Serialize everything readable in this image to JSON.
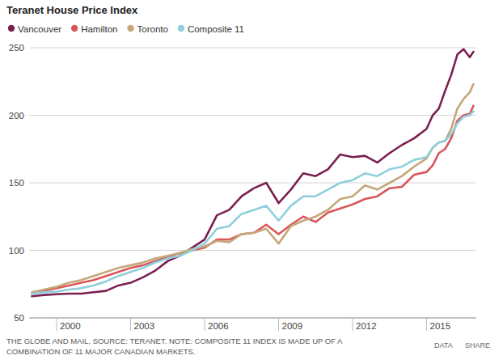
{
  "chart_data": {
    "type": "line",
    "title": "Teranet House Price Index",
    "source": [
      "THE GLOBE AND MAIL, SOURCE: TERANET. NOTE: COMPOSITE 11 INDEX IS MADE UP OF A",
      "COMBINATION OF 11 MAJOR CANADIAN MARKETS."
    ],
    "links": [
      "DATA",
      "SHARE"
    ],
    "x": [
      1999,
      1999.5,
      2000,
      2000.5,
      2001,
      2001.5,
      2002,
      2002.5,
      2003,
      2003.5,
      2004,
      2004.5,
      2005,
      2005.5,
      2006,
      2006.5,
      2007,
      2007.5,
      2008,
      2008.5,
      2009,
      2009.5,
      2010,
      2010.5,
      2011,
      2011.5,
      2012,
      2012.5,
      2013,
      2013.5,
      2014,
      2014.5,
      2015,
      2015.25,
      2015.5,
      2015.75,
      2016,
      2016.25,
      2016.5,
      2016.75,
      2016.9
    ],
    "series": [
      {
        "name": "Vancouver",
        "color": "#7b2151",
        "values": [
          66,
          67,
          67.5,
          68,
          68,
          69,
          70,
          74,
          76,
          80,
          85,
          92,
          96,
          102,
          108,
          126,
          130,
          140,
          146,
          150,
          135,
          145,
          157,
          155,
          160,
          171,
          169,
          170,
          165,
          172,
          178,
          183,
          190,
          200,
          205,
          218,
          230,
          245,
          249,
          243,
          247
        ]
      },
      {
        "name": "Hamilton",
        "color": "#d9565c",
        "values": [
          68,
          70,
          72,
          74,
          76,
          78,
          81,
          84,
          87,
          89,
          92,
          95,
          98,
          100,
          102,
          108,
          108,
          112,
          113,
          119,
          112,
          119,
          125,
          121,
          128,
          131,
          134,
          138,
          140,
          146,
          147,
          156,
          158,
          163,
          172,
          175,
          183,
          196,
          200,
          201,
          207
        ]
      },
      {
        "name": "Toronto",
        "color": "#c5a77a",
        "values": [
          69,
          71,
          73,
          76,
          78,
          81,
          84,
          87,
          89,
          91,
          94,
          96,
          98,
          101,
          103,
          107,
          106,
          112,
          113,
          116,
          105,
          118,
          122,
          125,
          130,
          138,
          140,
          148,
          145,
          150,
          155,
          162,
          168,
          176,
          180,
          181,
          190,
          205,
          212,
          217,
          223
        ]
      },
      {
        "name": "Composite 11",
        "color": "#8ecfdc",
        "values": [
          68,
          69,
          69.5,
          71,
          72,
          74,
          77,
          81,
          84,
          87,
          91,
          94,
          96,
          100,
          105,
          116,
          118,
          127,
          130,
          133,
          122,
          133,
          140,
          140,
          145,
          150,
          152,
          157,
          155,
          160,
          162,
          167,
          169,
          176,
          180,
          181,
          186,
          194,
          199,
          200,
          203
        ]
      }
    ],
    "xlim": [
      1998.9,
      2017.0
    ],
    "xticks": [
      2000,
      2003,
      2006,
      2009,
      2012,
      2015
    ],
    "ylim": [
      50,
      250
    ],
    "yticks": [
      50,
      100,
      150,
      200,
      250
    ],
    "grid": true,
    "legend": "top-left"
  }
}
